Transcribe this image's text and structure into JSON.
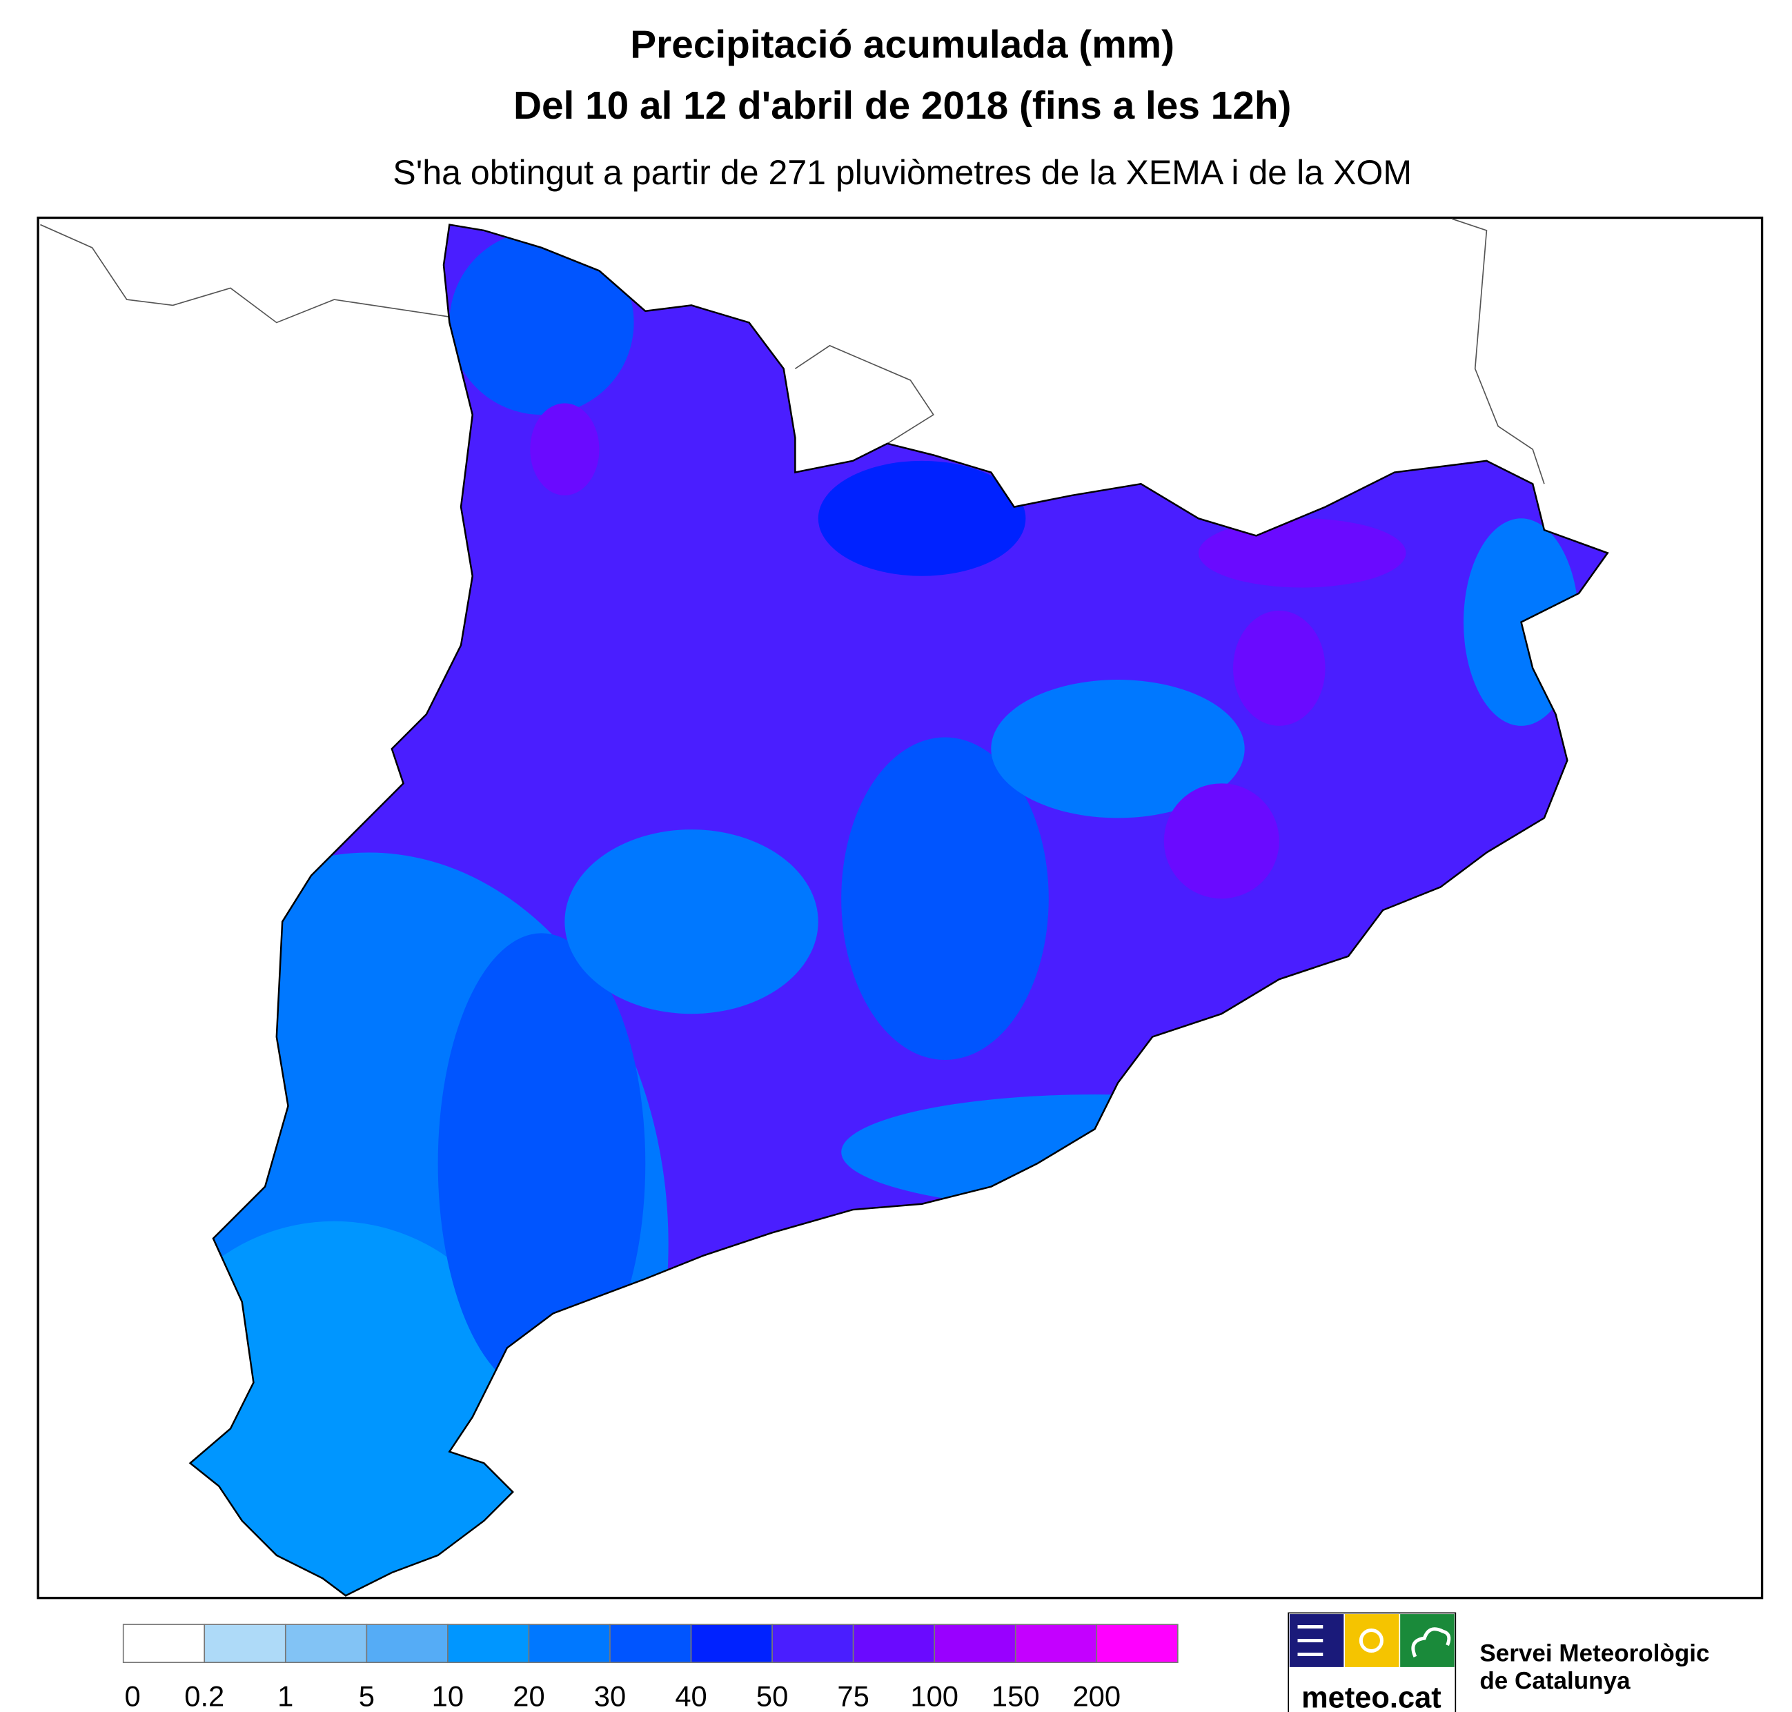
{
  "header": {
    "title": "Precipitació acumulada (mm)",
    "period": "Del 10 al 12 d'abril de 2018 (fins a les 12h)",
    "subtitle": "S'ha obtingut a partir de 271 pluviòmetres de la XEMA i de la XOM"
  },
  "legend": {
    "bins": [
      0,
      0.2,
      1,
      5,
      10,
      20,
      30,
      40,
      50,
      75,
      100,
      150,
      200
    ],
    "colors": [
      "#ffffff",
      "#aedaf8",
      "#82c3f5",
      "#55acf6",
      "#0096ff",
      "#0078ff",
      "#0055ff",
      "#0022ff",
      "#4a1eff",
      "#6a0aff",
      "#9900ff",
      "#c400ff",
      "#ff00ff"
    ]
  },
  "logo": {
    "site": "meteo.cat",
    "org_line1": "Servei Meteorològic",
    "org_line2": "de Catalunya"
  }
}
